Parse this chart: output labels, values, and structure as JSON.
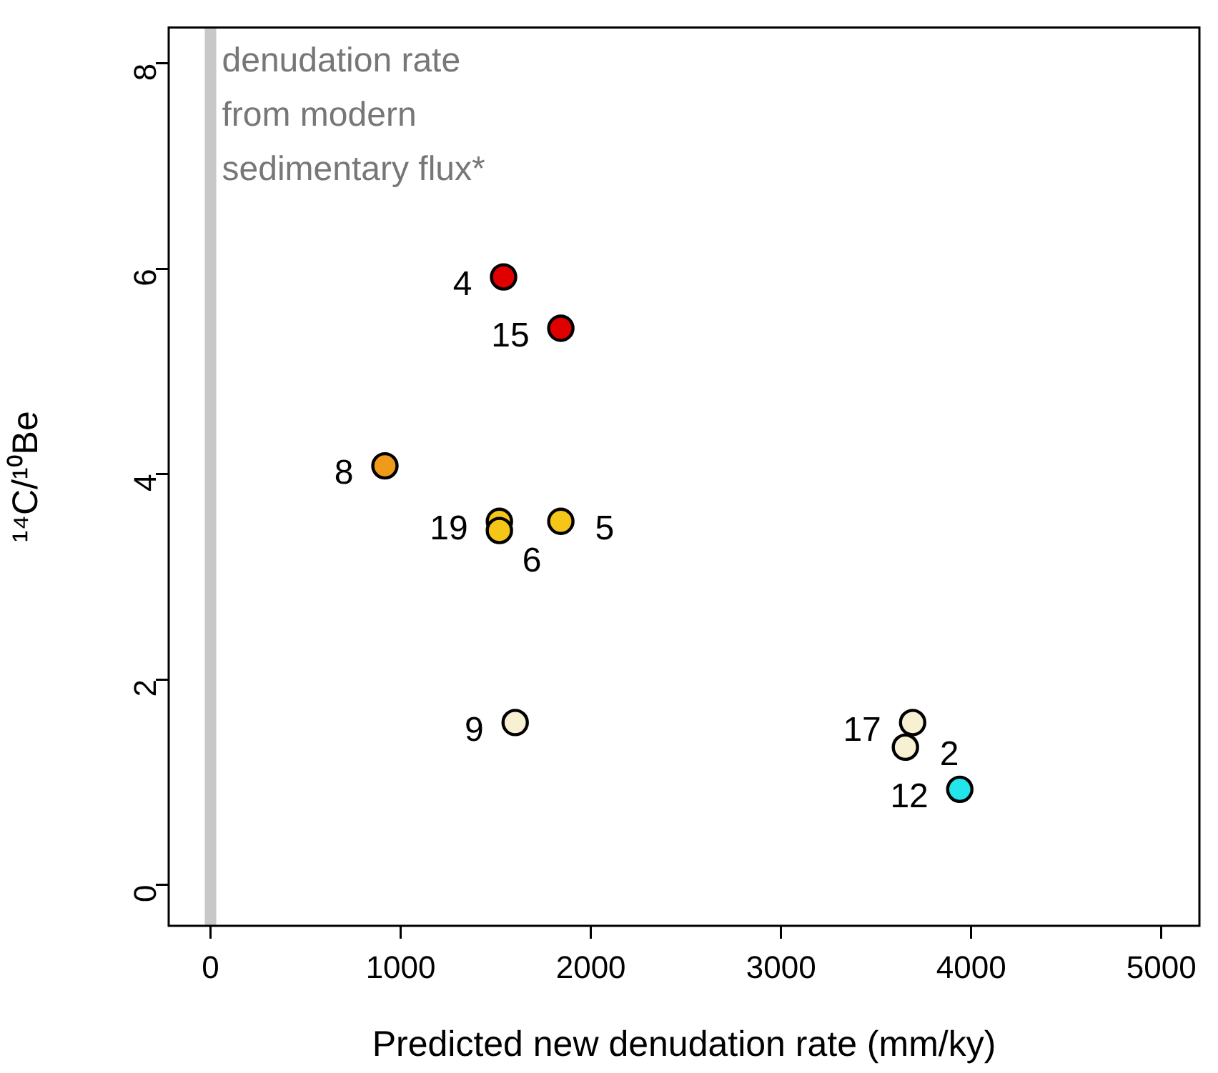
{
  "chart_data": {
    "type": "scatter",
    "xlabel": "Predicted new denudation rate (mm/ky)",
    "ylabel": "¹⁴C/¹⁰Be",
    "x": [
      1541,
      1842,
      917,
      1519,
      1519,
      1842,
      1602,
      3692,
      3654,
      3940
    ],
    "series": [
      {
        "values": [
          5.92,
          5.42,
          4.08,
          3.54,
          3.45,
          3.54,
          1.58,
          1.58,
          1.34,
          0.93
        ],
        "colors": [
          "#e00000",
          "#e00000",
          "#f09a1a",
          "#f5c518",
          "#f5c518",
          "#f5c518",
          "#f7f0d2",
          "#f7f0d2",
          "#f7f0d2",
          "#22e6ec"
        ]
      }
    ],
    "marker": "circle",
    "grid": false,
    "legend": false,
    "xlim": [
      -220,
      5200
    ],
    "xticks": [
      0,
      1000,
      2000,
      3000,
      4000,
      5000
    ],
    "ylim": [
      -0.4,
      8.35
    ],
    "yticks": [
      0,
      2,
      4,
      6,
      8
    ],
    "ref_lines": [
      {
        "axis": "x",
        "value": 0,
        "label": "denudation rate\nfrom modern\nsedimentary flux*",
        "color": "#c8c8c8"
      }
    ],
    "annotations": [
      {
        "text": "4",
        "x": 1541,
        "y": 5.92
      },
      {
        "text": "15",
        "x": 1842,
        "y": 5.42
      },
      {
        "text": "8",
        "x": 917,
        "y": 4.08
      },
      {
        "text": "19",
        "x": 1519,
        "y": 3.54
      },
      {
        "text": "6",
        "x": 1519,
        "y": 3.45
      },
      {
        "text": "5",
        "x": 1842,
        "y": 3.54
      },
      {
        "text": "9",
        "x": 1602,
        "y": 1.58
      },
      {
        "text": "17",
        "x": 3692,
        "y": 1.58
      },
      {
        "text": "2",
        "x": 3654,
        "y": 1.34
      },
      {
        "text": "12",
        "x": 3940,
        "y": 0.93
      }
    ]
  }
}
